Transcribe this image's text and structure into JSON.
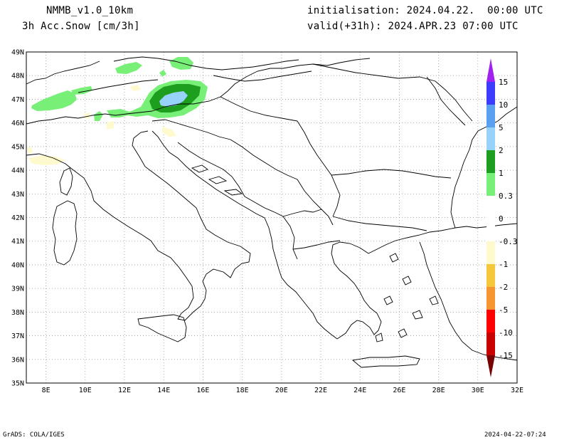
{
  "header": {
    "model": "NMMB_v1.0_10km",
    "variable": "3h Acc.Snow [cm/3h]",
    "init": "initialisation: 2024.04.22.  00:00 UTC",
    "valid": "valid(+31h): 2024.APR.23 07:00 UTC"
  },
  "footer": {
    "software": "GrADS: COLA/IGES",
    "timestamp": "2024-04-22-07:24"
  },
  "map": {
    "lat_labels": [
      "49N",
      "48N",
      "47N",
      "46N",
      "45N",
      "44N",
      "43N",
      "42N",
      "41N",
      "40N",
      "39N",
      "38N",
      "37N",
      "36N",
      "35N"
    ],
    "lon_labels": [
      "8E",
      "10E",
      "12E",
      "14E",
      "16E",
      "18E",
      "20E",
      "22E",
      "24E",
      "26E",
      "28E",
      "30E",
      "32E"
    ]
  },
  "colorbar": {
    "labels": [
      "15",
      "10",
      "5",
      "2",
      "1",
      "0.3",
      "0",
      "-0.3",
      "-1",
      "-2",
      "-5",
      "-10",
      "-15"
    ],
    "colors": {
      "over": "#a020f0",
      "c_10_15": "#3c3cff",
      "c_5_10": "#5aa0f0",
      "c_2_5": "#96d2fa",
      "c_1_2": "#1e9e1e",
      "c_03_1": "#78f078",
      "c_n03_0": "#fffacd",
      "c_n1_n03": "#f5c83c",
      "c_n2_n1": "#f59632",
      "c_n5_n2": "#ff0000",
      "c_n10_n5": "#c80000",
      "under": "#780000"
    }
  }
}
